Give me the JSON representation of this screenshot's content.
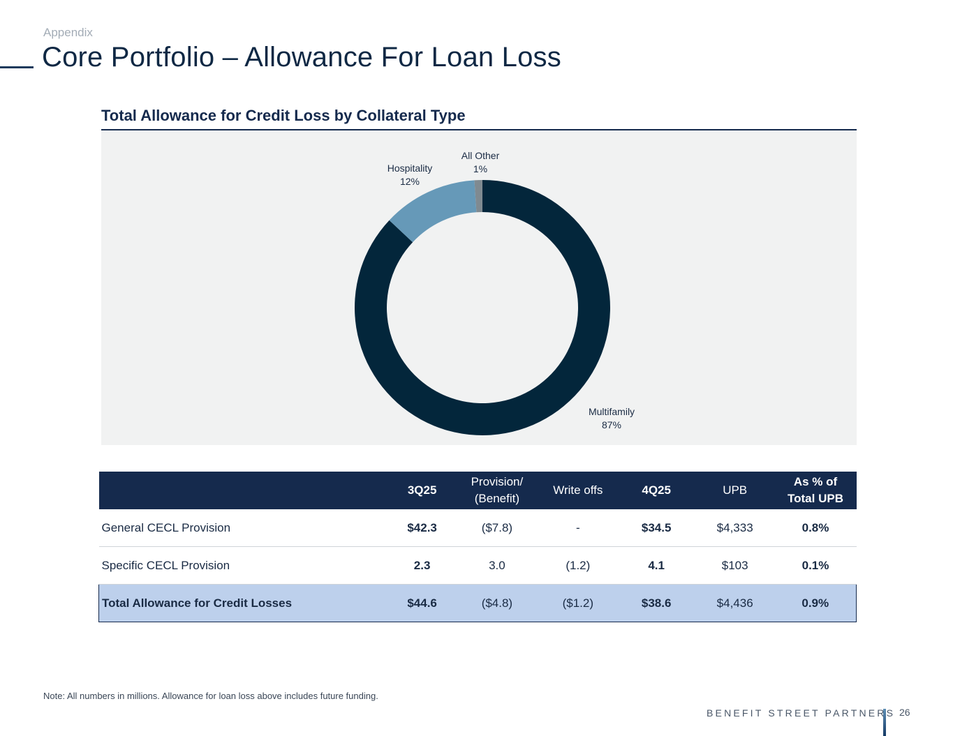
{
  "header": {
    "section": "Appendix",
    "title": "Core Portfolio – Allowance For Loan Loss"
  },
  "chart_data": {
    "type": "pie",
    "title": "Total Allowance for Credit Loss by Collateral Type",
    "donut": true,
    "slices": [
      {
        "label": "Multifamily",
        "pct_label": "87%",
        "value": 87,
        "color": "#03263b"
      },
      {
        "label": "Hospitality",
        "pct_label": "12%",
        "value": 12,
        "color": "#6699b8"
      },
      {
        "label": "All Other",
        "pct_label": "1%",
        "value": 1,
        "color": "#7f8a91"
      }
    ]
  },
  "table": {
    "headers": [
      {
        "line1": "",
        "line2": ""
      },
      {
        "line1": "3Q25",
        "line2": ""
      },
      {
        "line1": "Provision/",
        "line2": "(Benefit)"
      },
      {
        "line1": "Write offs",
        "line2": ""
      },
      {
        "line1": "4Q25",
        "line2": ""
      },
      {
        "line1": "UPB",
        "line2": ""
      },
      {
        "line1": "As % of",
        "line2": "Total UPB"
      }
    ],
    "rows": [
      {
        "label": "General CECL Provision",
        "q3": "$42.3",
        "provision": "($7.8)",
        "writeoffs": "-",
        "q4": "$34.5",
        "upb": "$4,333",
        "pct": "0.8%"
      },
      {
        "label": "Specific CECL Provision",
        "q3": "2.3",
        "provision": "3.0",
        "writeoffs": "(1.2)",
        "q4": "4.1",
        "upb": "$103",
        "pct": "0.1%"
      },
      {
        "label": "Total Allowance for Credit Losses",
        "q3": "$44.6",
        "provision": "($4.8)",
        "writeoffs": "($1.2)",
        "q4": "$38.6",
        "upb": "$4,436",
        "pct": "0.9%"
      }
    ]
  },
  "footer": {
    "note": "Note: All numbers in millions. Allowance for loan loss above includes future funding.",
    "brand": "BENEFIT STREET PARTNERS",
    "page_number": "26"
  }
}
